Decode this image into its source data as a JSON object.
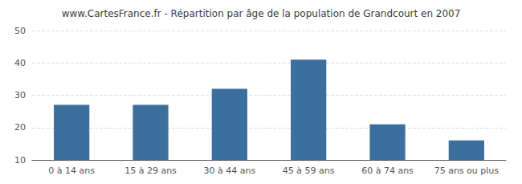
{
  "chart_data": {
    "type": "bar",
    "title": "www.CartesFrance.fr - Répartition par âge de la population de Grandcourt en 2007",
    "categories": [
      "0 à 14 ans",
      "15 à 29 ans",
      "30 à 44 ans",
      "45 à 59 ans",
      "60 à 74 ans",
      "75 ans ou plus"
    ],
    "values": [
      27,
      27,
      32,
      41,
      21,
      16
    ],
    "color": "#3d6f9e",
    "ylim": [
      10,
      50
    ],
    "yticks": [
      10,
      20,
      30,
      40,
      50
    ],
    "grid": true
  }
}
